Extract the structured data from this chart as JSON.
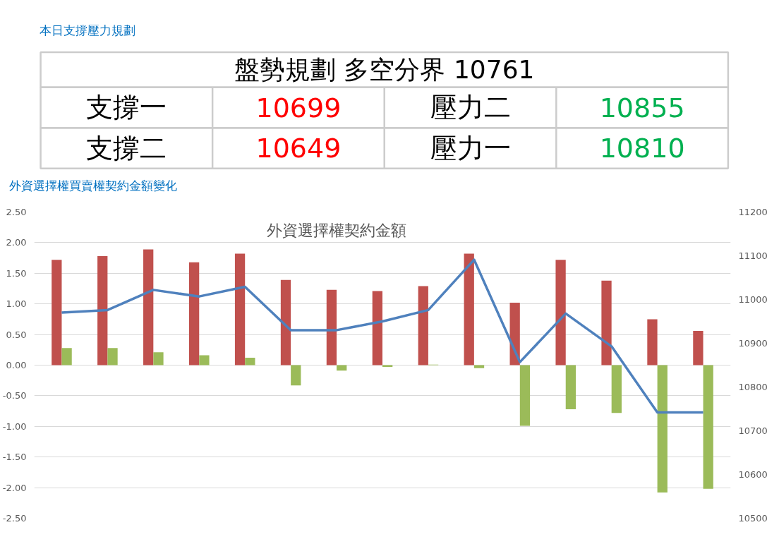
{
  "chart_data": [
    {
      "type": "other",
      "title": "本日支撐壓力規劃",
      "annotations": [
        "盤勢規劃 多空分界 10761",
        "支撐一",
        "10699",
        "壓力二",
        "10855",
        "支撐二",
        "10649",
        "壓力一",
        "10810"
      ]
    },
    {
      "type": "bar",
      "title": "外資選擇權買賣權契約金額變化",
      "subtitle": "外資選擇權契約金額",
      "categories": [
        null,
        null,
        null,
        null,
        null,
        null,
        null,
        null,
        null,
        null,
        null,
        null,
        null,
        null,
        null
      ],
      "series": [
        {
          "color": "#c0504d",
          "values": [
            1.72,
            1.78,
            1.89,
            1.68,
            1.82,
            1.39,
            1.23,
            1.21,
            1.29,
            1.82,
            1.02,
            1.72,
            1.38,
            0.75,
            0.56
          ]
        },
        {
          "color": "#9bbb59",
          "values": [
            0.28,
            0.28,
            0.21,
            0.16,
            0.12,
            -0.33,
            -0.09,
            -0.03,
            0.01,
            -0.05,
            -0.99,
            -0.72,
            -0.78,
            -2.08,
            -2.02
          ]
        },
        {
          "type": "line",
          "axis": "y2",
          "color": "#4f81bd",
          "values": [
            10970,
            10976,
            11022,
            11007,
            11029,
            10930,
            10930,
            10950,
            10976,
            11091,
            10857,
            10968,
            10893,
            10742,
            10742
          ]
        }
      ],
      "ylim": [
        -2.5,
        2.5
      ],
      "yticks": [
        {
          "value": -2.5,
          "label": "-2.50"
        },
        {
          "value": -2,
          "label": "-2.00"
        },
        {
          "value": -1.5,
          "label": "-1.50"
        },
        {
          "value": -1,
          "label": "-1.00"
        },
        {
          "value": -0.5,
          "label": "-0.50"
        },
        {
          "value": 0,
          "label": "0.00"
        },
        {
          "value": 0.5,
          "label": "0.50"
        },
        {
          "value": 1,
          "label": "1.00"
        },
        {
          "value": 1.5,
          "label": "1.50"
        },
        {
          "value": 2,
          "label": "2.00"
        },
        {
          "value": 2.5,
          "label": "2.50"
        }
      ],
      "y2lim": [
        10500,
        11200
      ],
      "y2ticks": [
        10500,
        10600,
        10700,
        10800,
        10900,
        11000,
        11100,
        11200
      ],
      "grid": "y",
      "line_style": "solid"
    }
  ]
}
